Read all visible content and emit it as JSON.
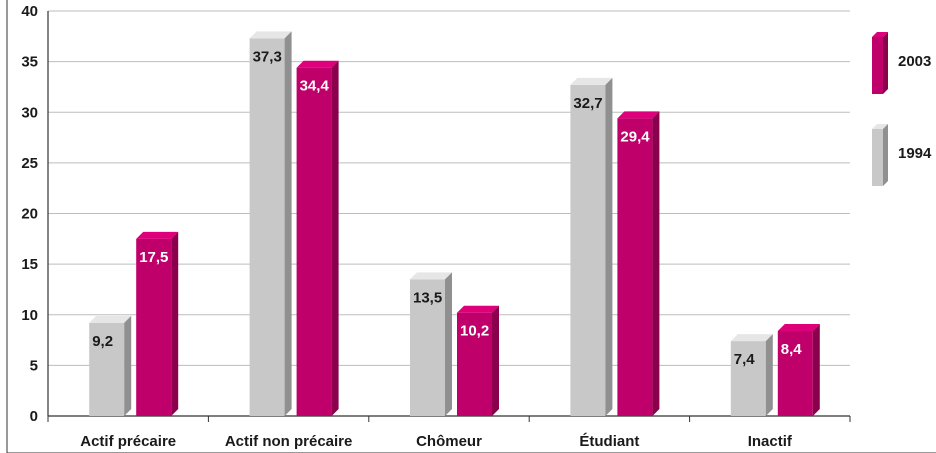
{
  "chart_data": {
    "type": "bar",
    "title": "",
    "xlabel": "",
    "ylabel": "",
    "ylim": [
      0,
      40
    ],
    "yticks": [
      0,
      5,
      10,
      15,
      20,
      25,
      30,
      35,
      40
    ],
    "grid": true,
    "legend_position": "right",
    "categories": [
      "Actif précaire",
      "Actif non précaire",
      "Chômeur",
      "Étudiant",
      "Inactif"
    ],
    "series": [
      {
        "name": "1994",
        "color": "#c8c8c8",
        "value_labels": [
          "9,2",
          "37,3",
          "13,5",
          "32,7",
          "7,4"
        ],
        "values": [
          9.2,
          37.3,
          13.5,
          32.7,
          7.4
        ]
      },
      {
        "name": "2003",
        "color": "#c0006a",
        "value_labels": [
          "17,5",
          "34,4",
          "10,2",
          "29,4",
          "8,4"
        ],
        "values": [
          17.5,
          34.4,
          10.2,
          29.4,
          8.4
        ]
      }
    ],
    "legend_order": [
      "2003",
      "1994"
    ]
  }
}
